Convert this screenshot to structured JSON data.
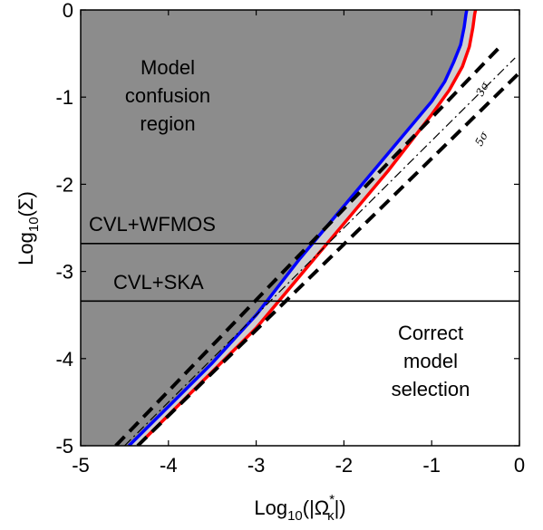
{
  "chart_data": {
    "type": "line",
    "xlabel": "Log10(|Ω*κ|)",
    "ylabel": "Log10(Σ)",
    "xlim": [
      -5,
      0
    ],
    "ylim": [
      -5,
      0
    ],
    "x_ticks": [
      -5,
      -4,
      -3,
      -2,
      -1,
      0
    ],
    "y_ticks": [
      -5,
      -4,
      -3,
      -2,
      -1,
      0
    ],
    "x_tick_labels": [
      "-5",
      "-4",
      "-3",
      "-2",
      "-1",
      "0"
    ],
    "y_tick_labels": [
      "-5",
      "-4",
      "-3",
      "-2",
      "-1",
      "0"
    ],
    "grid": false,
    "colors": {
      "confusion_fill": "#8c8c8c",
      "band_fill": "#cfcfcf",
      "blue": "#0000ff",
      "red": "#ff0000",
      "black": "#000000"
    },
    "series": [
      {
        "style": "solid-blue",
        "x": [
          -4.45,
          -4.0,
          -3.5,
          -3.0,
          -2.5,
          -2.0,
          -1.5,
          -1.0,
          -0.85,
          -0.75,
          -0.67,
          -0.63,
          -0.61,
          -0.6
        ],
        "y": [
          -5.0,
          -4.55,
          -4.05,
          -3.5,
          -2.85,
          -2.25,
          -1.65,
          -1.05,
          -0.82,
          -0.6,
          -0.4,
          -0.2,
          -0.05,
          0.0
        ]
      },
      {
        "style": "solid-red",
        "x": [
          -4.35,
          -4.0,
          -3.5,
          -3.0,
          -2.5,
          -2.0,
          -1.5,
          -1.0,
          -0.8,
          -0.65,
          -0.57,
          -0.53,
          -0.51,
          -0.5
        ],
        "y": [
          -5.0,
          -4.65,
          -4.15,
          -3.65,
          -3.05,
          -2.45,
          -1.85,
          -1.2,
          -0.92,
          -0.65,
          -0.42,
          -0.2,
          -0.05,
          0.0
        ]
      },
      {
        "label": "3σ",
        "style": "dashed-black",
        "x": [
          -4.6,
          -0.2
        ],
        "y": [
          -5.0,
          -0.4
        ]
      },
      {
        "label": "5σ",
        "style": "dashdot-black",
        "x": [
          -4.5,
          -0.05
        ],
        "y": [
          -5.0,
          -0.55
        ]
      },
      {
        "style": "dashed-black",
        "x": [
          -4.35,
          0.0
        ],
        "y": [
          -5.0,
          -0.72
        ]
      }
    ],
    "hlines": [
      {
        "label": "CVL+WFMOS",
        "y": -2.68
      },
      {
        "label": "CVL+SKA",
        "y": -3.34
      }
    ],
    "annotations": {
      "confusion": [
        "Model",
        "confusion",
        "region"
      ],
      "correct": [
        "Correct",
        "model",
        "selection"
      ],
      "sigma3": "3σ",
      "sigma5": "5σ"
    }
  }
}
